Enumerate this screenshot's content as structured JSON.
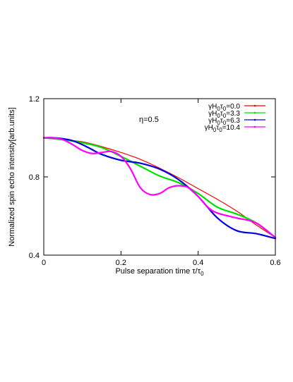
{
  "chart_data": {
    "type": "line",
    "title": "",
    "annotation": "η=0.5",
    "xlabel": "Pulse separation time τ/τ0",
    "ylabel": "Normalized spin echo intensity[arb.units]",
    "xlim": [
      0,
      0.6
    ],
    "ylim": [
      0.4,
      1.2
    ],
    "x_ticks": [
      0,
      0.2,
      0.4,
      0.6
    ],
    "x_tick_labels": [
      "0",
      "0.2",
      "0.4",
      "0.6"
    ],
    "y_ticks": [
      0.4,
      0.8,
      1.2
    ],
    "y_tick_labels": [
      "0.4",
      "0.8",
      "1.2"
    ],
    "grid": false,
    "legend_position": "top-right",
    "series": [
      {
        "name": "γH0τ0=0.0",
        "color": "#ff0000",
        "x": [
          0,
          0.05,
          0.1,
          0.15,
          0.2,
          0.25,
          0.3,
          0.35,
          0.4,
          0.45,
          0.5,
          0.55,
          0.6
        ],
        "y": [
          1.0,
          0.99,
          0.98,
          0.955,
          0.925,
          0.89,
          0.845,
          0.795,
          0.74,
          0.685,
          0.625,
          0.555,
          0.49
        ]
      },
      {
        "name": "γH0τ0=3.3",
        "color": "#00e000",
        "x": [
          0,
          0.05,
          0.1,
          0.15,
          0.2,
          0.25,
          0.3,
          0.35,
          0.4,
          0.45,
          0.5,
          0.55,
          0.6
        ],
        "y": [
          1.0,
          0.99,
          0.975,
          0.95,
          0.905,
          0.855,
          0.805,
          0.77,
          0.715,
          0.645,
          0.61,
          0.565,
          0.49
        ]
      },
      {
        "name": "γH0τ0=6.3",
        "color": "#0000e0",
        "x": [
          0,
          0.025,
          0.05,
          0.075,
          0.1,
          0.125,
          0.15,
          0.2,
          0.25,
          0.3,
          0.35,
          0.4,
          0.45,
          0.5,
          0.55,
          0.6
        ],
        "y": [
          1.0,
          1.0,
          0.995,
          0.985,
          0.965,
          0.94,
          0.915,
          0.885,
          0.87,
          0.84,
          0.785,
          0.7,
          0.59,
          0.525,
          0.51,
          0.485
        ]
      },
      {
        "name": "γH0τ0=10.4",
        "color": "#ff00ff",
        "x": [
          0,
          0.025,
          0.05,
          0.075,
          0.1,
          0.125,
          0.15,
          0.175,
          0.2,
          0.225,
          0.25,
          0.275,
          0.3,
          0.325,
          0.35,
          0.375,
          0.4,
          0.425,
          0.45,
          0.5,
          0.55,
          0.6
        ],
        "y": [
          1.0,
          1.0,
          0.99,
          0.965,
          0.935,
          0.92,
          0.925,
          0.93,
          0.905,
          0.84,
          0.745,
          0.71,
          0.715,
          0.745,
          0.755,
          0.745,
          0.7,
          0.645,
          0.615,
          0.59,
          0.565,
          0.49
        ]
      }
    ]
  }
}
